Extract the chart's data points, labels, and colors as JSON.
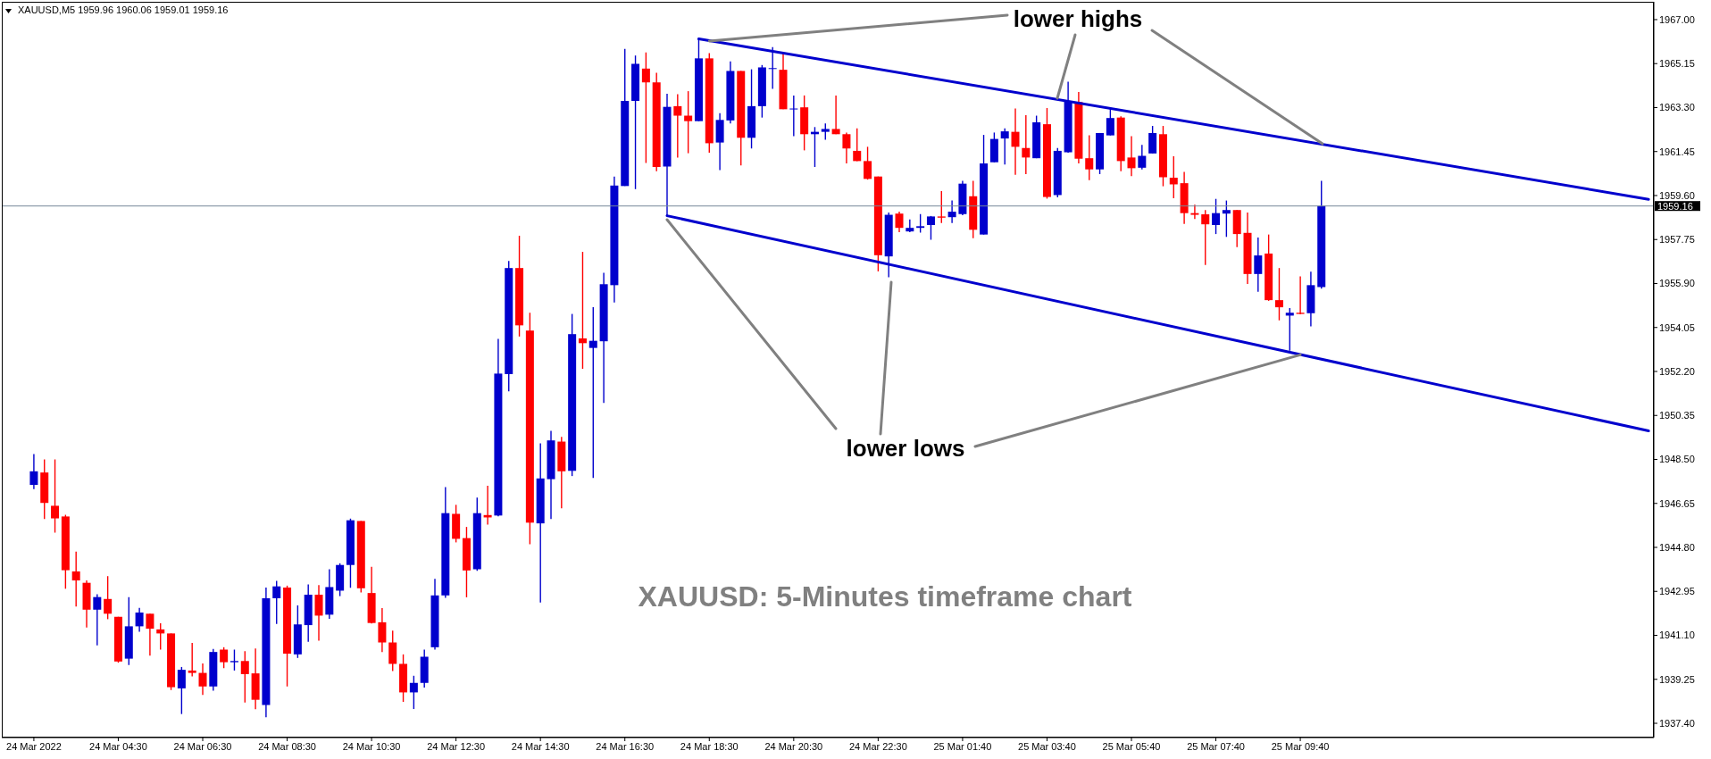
{
  "chart_data": {
    "type": "candlestick",
    "title": "XAUUSD,M5 1959.96 1960.06 1959.01 1959.16",
    "categories": [
      "24 Mar 2022",
      null,
      null,
      null,
      null,
      null,
      null,
      null,
      "24 Mar 04:30",
      null,
      null,
      null,
      null,
      null,
      null,
      null,
      "24 Mar 06:30",
      null,
      null,
      null,
      null,
      null,
      null,
      null,
      "24 Mar 08:30",
      null,
      null,
      null,
      null,
      null,
      null,
      null,
      "24 Mar 10:30",
      null,
      null,
      null,
      null,
      null,
      null,
      null,
      "24 Mar 12:30",
      null,
      null,
      null,
      null,
      null,
      null,
      null,
      "24 Mar 14:30",
      null,
      null,
      null,
      null,
      null,
      null,
      null,
      "24 Mar 16:30",
      null,
      null,
      null,
      null,
      null,
      null,
      null,
      "24 Mar 18:30",
      null,
      null,
      null,
      null,
      null,
      null,
      null,
      "24 Mar 20:30",
      null,
      null,
      null,
      null,
      null,
      null,
      null,
      "24 Mar 22:30",
      null,
      null,
      null,
      null,
      null,
      null,
      null,
      "25 Mar 01:40",
      null,
      null,
      null,
      null,
      null,
      null,
      null,
      "25 Mar 03:40",
      null,
      null,
      null,
      null,
      null,
      null,
      null,
      "25 Mar 05:40",
      null,
      null,
      null,
      null,
      null,
      null,
      null,
      "25 Mar 07:40",
      null,
      null,
      null,
      null,
      null,
      null,
      null,
      "25 Mar 09:40",
      null,
      null,
      null,
      null,
      null,
      null,
      null,
      null,
      null,
      null,
      null,
      null,
      null,
      null,
      null,
      null,
      null,
      null,
      null,
      null,
      null,
      null,
      null,
      null,
      null,
      null,
      null,
      null,
      null,
      null,
      null,
      null,
      null
    ],
    "ohlc": [
      [
        1947.43,
        1948.73,
        1947.25,
        1948.0
      ],
      [
        1947.95,
        1948.5,
        1945.99,
        1946.67
      ],
      [
        1946.55,
        1948.5,
        1945.42,
        1946.02
      ],
      [
        1946.1,
        1946.17,
        1943.06,
        1943.84
      ],
      [
        1943.79,
        1944.62,
        1942.31,
        1943.41
      ],
      [
        1943.31,
        1943.41,
        1941.43,
        1942.18
      ],
      [
        1942.18,
        1942.83,
        1940.68,
        1942.71
      ],
      [
        1942.63,
        1943.59,
        1941.78,
        1942.01
      ],
      [
        1941.88,
        1941.88,
        1939.95,
        1940.0
      ],
      [
        1940.12,
        1942.71,
        1939.85,
        1941.48
      ],
      [
        1941.48,
        1942.26,
        1941.25,
        1942.06
      ],
      [
        1942.01,
        1942.01,
        1940.25,
        1941.38
      ],
      [
        1941.35,
        1941.61,
        1940.5,
        1941.18
      ],
      [
        1941.18,
        1941.18,
        1938.8,
        1938.92
      ],
      [
        1938.87,
        1939.77,
        1937.79,
        1939.65
      ],
      [
        1939.62,
        1940.78,
        1939.37,
        1939.52
      ],
      [
        1939.52,
        1939.92,
        1938.59,
        1938.95
      ],
      [
        1938.95,
        1940.53,
        1938.77,
        1940.4
      ],
      [
        1940.5,
        1940.6,
        1939.72,
        1939.97
      ],
      [
        1939.97,
        1940.5,
        1939.62,
        1940.02
      ],
      [
        1940.02,
        1940.43,
        1938.27,
        1939.47
      ],
      [
        1939.5,
        1940.55,
        1937.99,
        1938.39
      ],
      [
        1938.17,
        1943.11,
        1937.65,
        1942.66
      ],
      [
        1942.66,
        1943.39,
        1941.58,
        1943.16
      ],
      [
        1943.11,
        1943.19,
        1938.95,
        1940.33
      ],
      [
        1940.3,
        1942.36,
        1940.15,
        1941.56
      ],
      [
        1941.53,
        1943.24,
        1940.83,
        1942.81
      ],
      [
        1942.81,
        1943.21,
        1940.88,
        1941.93
      ],
      [
        1941.97,
        1943.88,
        1941.8,
        1943.13
      ],
      [
        1942.98,
        1944.13,
        1942.75,
        1944.06
      ],
      [
        1944.06,
        1946.01,
        1943.1,
        1945.94
      ],
      [
        1945.91,
        1945.91,
        1942.9,
        1943.08
      ],
      [
        1942.88,
        1943.98,
        1941.6,
        1941.62
      ],
      [
        1941.65,
        1942.25,
        1940.4,
        1940.8
      ],
      [
        1940.8,
        1941.3,
        1939.6,
        1939.9
      ],
      [
        1939.9,
        1940.3,
        1938.3,
        1938.7
      ],
      [
        1938.7,
        1939.4,
        1938.0,
        1939.1
      ],
      [
        1939.1,
        1940.5,
        1938.9,
        1940.2
      ],
      [
        1940.6,
        1943.48,
        1940.5,
        1942.78
      ],
      [
        1942.78,
        1947.34,
        1942.68,
        1946.24
      ],
      [
        1946.21,
        1946.59,
        1945.01,
        1945.16
      ],
      [
        1945.19,
        1945.66,
        1942.7,
        1943.83
      ],
      [
        1943.88,
        1946.89,
        1943.81,
        1946.24
      ],
      [
        1946.16,
        1947.39,
        1945.76,
        1946.06
      ],
      [
        1946.14,
        1953.57,
        1946.11,
        1952.11
      ],
      [
        1952.09,
        1956.85,
        1951.36,
        1956.55
      ],
      [
        1956.55,
        1957.91,
        1953.67,
        1954.14
      ],
      [
        1953.92,
        1954.67,
        1944.93,
        1945.84
      ],
      [
        1945.81,
        1949.18,
        1942.48,
        1947.7
      ],
      [
        1947.67,
        1949.7,
        1945.99,
        1949.3
      ],
      [
        1949.25,
        1949.45,
        1946.44,
        1948.0
      ],
      [
        1948.02,
        1954.62,
        1947.8,
        1953.77
      ],
      [
        1953.59,
        1957.23,
        1952.31,
        1953.39
      ],
      [
        1953.19,
        1954.9,
        1947.72,
        1953.49
      ],
      [
        1953.47,
        1956.35,
        1950.88,
        1955.87
      ],
      [
        1955.83,
        1960.4,
        1955.1,
        1960.02
      ],
      [
        1960.0,
        1965.77,
        1960.0,
        1963.58
      ],
      [
        1963.58,
        1965.49,
        1959.87,
        1965.14
      ],
      [
        1964.94,
        1965.62,
        1960.97,
        1964.36
      ],
      [
        1964.36,
        1964.76,
        1960.62,
        1960.8
      ],
      [
        1960.82,
        1963.88,
        1958.75,
        1963.33
      ],
      [
        1963.36,
        1963.86,
        1961.2,
        1962.96
      ],
      [
        1962.96,
        1963.99,
        1961.38,
        1962.73
      ],
      [
        1962.73,
        1966.19,
        1962.73,
        1965.37
      ],
      [
        1965.37,
        1965.59,
        1961.4,
        1961.8
      ],
      [
        1961.83,
        1963.06,
        1960.67,
        1962.78
      ],
      [
        1962.76,
        1965.24,
        1962.63,
        1964.84
      ],
      [
        1964.84,
        1964.84,
        1960.87,
        1962.03
      ],
      [
        1962.03,
        1964.91,
        1961.58,
        1963.36
      ],
      [
        1963.36,
        1965.09,
        1962.88,
        1964.99
      ],
      [
        1964.96,
        1965.84,
        1964.09,
        1964.96
      ],
      [
        1964.89,
        1965.62,
        1963.23,
        1963.23
      ],
      [
        1963.23,
        1963.81,
        1962.1,
        1963.26
      ],
      [
        1963.31,
        1963.81,
        1961.5,
        1962.18
      ],
      [
        1962.18,
        1962.48,
        1960.8,
        1962.28
      ],
      [
        1962.28,
        1962.63,
        1961.95,
        1962.4
      ],
      [
        1962.4,
        1963.81,
        1962.18,
        1962.18
      ],
      [
        1962.18,
        1962.25,
        1960.95,
        1961.58
      ],
      [
        1961.48,
        1962.43,
        1961.05,
        1961.05
      ],
      [
        1961.05,
        1961.65,
        1960.27,
        1960.3
      ],
      [
        1960.4,
        1960.4,
        1956.41,
        1957.09
      ],
      [
        1957.04,
        1958.89,
        1956.16,
        1958.79
      ],
      [
        1958.84,
        1958.92,
        1958.06,
        1958.24
      ],
      [
        1958.09,
        1958.59,
        1958.06,
        1958.24
      ],
      [
        1958.24,
        1958.82,
        1958.04,
        1958.31
      ],
      [
        1958.36,
        1958.74,
        1957.74,
        1958.72
      ],
      [
        1958.72,
        1959.79,
        1958.44,
        1958.67
      ],
      [
        1958.69,
        1959.39,
        1958.44,
        1958.92
      ],
      [
        1958.82,
        1960.22,
        1958.77,
        1960.1
      ],
      [
        1959.57,
        1960.22,
        1957.81,
        1958.16
      ],
      [
        1957.96,
        1962.15,
        1957.96,
        1960.95
      ],
      [
        1961.0,
        1962.25,
        1961.0,
        1961.98
      ],
      [
        1962.0,
        1962.43,
        1960.9,
        1962.3
      ],
      [
        1962.28,
        1963.26,
        1960.47,
        1961.65
      ],
      [
        1961.6,
        1962.98,
        1960.5,
        1961.2
      ],
      [
        1961.17,
        1962.96,
        1961.17,
        1962.68
      ],
      [
        1962.6,
        1963.28,
        1959.47,
        1959.54
      ],
      [
        1959.62,
        1961.6,
        1959.52,
        1961.48
      ],
      [
        1961.42,
        1964.39,
        1961.4,
        1963.58
      ],
      [
        1963.53,
        1963.96,
        1960.95,
        1961.15
      ],
      [
        1961.17,
        1962.13,
        1960.25,
        1960.7
      ],
      [
        1960.7,
        1962.23,
        1960.5,
        1962.23
      ],
      [
        1962.13,
        1963.28,
        1962.13,
        1962.86
      ],
      [
        1962.88,
        1962.93,
        1960.62,
        1961.05
      ],
      [
        1961.2,
        1962.1,
        1960.42,
        1960.75
      ],
      [
        1960.77,
        1961.73,
        1960.7,
        1961.27
      ],
      [
        1961.37,
        1962.53,
        1961.37,
        1962.23
      ],
      [
        1962.18,
        1962.53,
        1959.99,
        1960.37
      ],
      [
        1960.35,
        1961.25,
        1959.49,
        1960.07
      ],
      [
        1960.12,
        1960.59,
        1958.41,
        1958.86
      ],
      [
        1958.86,
        1959.21,
        1958.61,
        1958.79
      ],
      [
        1958.81,
        1958.99,
        1956.68,
        1958.39
      ],
      [
        1958.36,
        1959.46,
        1957.98,
        1958.86
      ],
      [
        1958.84,
        1959.39,
        1957.86,
        1958.99
      ],
      [
        1958.99,
        1958.99,
        1957.43,
        1957.98
      ],
      [
        1958.03,
        1958.89,
        1955.88,
        1956.3
      ],
      [
        1956.3,
        1957.83,
        1955.55,
        1957.08
      ],
      [
        1957.16,
        1957.96,
        1955.17,
        1955.2
      ],
      [
        1955.2,
        1956.55,
        1954.35,
        1954.9
      ],
      [
        1954.55,
        1954.87,
        1953.07,
        1954.67
      ],
      [
        1954.67,
        1956.2,
        1954.6,
        1954.62
      ],
      [
        1954.65,
        1956.4,
        1954.1,
        1955.83
      ],
      [
        1955.75,
        1960.22,
        1955.68,
        1959.16
      ],
      null,
      null,
      null,
      null,
      null,
      null,
      null,
      null,
      null,
      null,
      null,
      null,
      null,
      null,
      null,
      null,
      null,
      null,
      null,
      null,
      null,
      null,
      null,
      null,
      null,
      null,
      null,
      null,
      null,
      null,
      null
    ],
    "colors": [
      "#0000cd",
      "#ff0000",
      "#ff0000",
      "#ff0000",
      "#ff0000",
      "#ff0000",
      "#0000cd",
      "#ff0000",
      "#ff0000",
      "#0000cd",
      "#0000cd",
      "#ff0000",
      "#ff0000",
      "#ff0000",
      "#0000cd",
      "#ff0000",
      "#ff0000",
      "#0000cd",
      "#ff0000",
      "#0000cd",
      "#ff0000",
      "#ff0000",
      "#0000cd",
      "#0000cd",
      "#ff0000",
      "#0000cd",
      "#0000cd",
      "#ff0000",
      "#0000cd",
      "#0000cd",
      "#0000cd",
      "#ff0000",
      "#ff0000",
      "#ff0000",
      "#ff0000",
      "#ff0000",
      "#0000cd",
      "#0000cd",
      "#0000cd",
      "#0000cd",
      "#ff0000",
      "#ff0000",
      "#0000cd",
      "#ff0000",
      "#0000cd",
      "#0000cd",
      "#ff0000",
      "#ff0000",
      "#0000cd",
      "#0000cd",
      "#ff0000",
      "#0000cd",
      "#ff0000",
      "#0000cd",
      "#0000cd",
      "#0000cd",
      "#0000cd",
      "#0000cd",
      "#ff0000",
      "#ff0000",
      "#0000cd",
      "#ff0000",
      "#ff0000",
      "#0000cd",
      "#ff0000",
      "#0000cd",
      "#0000cd",
      "#ff0000",
      "#0000cd",
      "#0000cd",
      "#0000cd",
      "#ff0000",
      "#0000cd",
      "#ff0000",
      "#0000cd",
      "#0000cd",
      "#ff0000",
      "#ff0000",
      "#ff0000",
      "#ff0000",
      "#ff0000",
      "#0000cd",
      "#ff0000",
      "#0000cd",
      "#0000cd",
      "#0000cd",
      "#ff0000",
      "#0000cd",
      "#0000cd",
      "#ff0000",
      "#0000cd",
      "#0000cd",
      "#0000cd",
      "#ff0000",
      "#ff0000",
      "#0000cd",
      "#ff0000",
      "#0000cd",
      "#0000cd",
      "#ff0000",
      "#ff0000",
      "#0000cd",
      "#0000cd",
      "#ff0000",
      "#ff0000",
      "#0000cd",
      "#0000cd",
      "#ff0000",
      "#ff0000",
      "#ff0000",
      "#ff0000",
      "#ff0000",
      "#0000cd",
      "#0000cd",
      "#ff0000",
      "#ff0000",
      "#0000cd",
      "#ff0000",
      "#ff0000",
      "#0000cd",
      "#ff0000",
      "#0000cd",
      "#0000cd",
      null,
      null,
      null,
      null,
      null,
      null,
      null,
      null,
      null,
      null,
      null,
      null,
      null,
      null,
      null,
      null,
      null,
      null,
      null,
      null,
      null,
      null,
      null,
      null,
      null,
      null,
      null,
      null,
      null,
      null,
      null
    ],
    "series": [
      {
        "type": "line",
        "color": "#0000cd",
        "values": [
          null,
          null,
          null,
          null,
          null,
          null,
          null,
          null,
          null,
          null,
          null,
          null,
          null,
          null,
          null,
          null,
          null,
          null,
          null,
          null,
          null,
          null,
          null,
          null,
          null,
          null,
          null,
          null,
          null,
          null,
          null,
          null,
          null,
          null,
          null,
          null,
          null,
          null,
          null,
          null,
          null,
          null,
          null,
          null,
          null,
          null,
          null,
          null,
          null,
          null,
          null,
          null,
          null,
          null,
          null,
          null,
          null,
          null,
          null,
          null,
          null,
          null,
          null,
          1966.19,
          null,
          null,
          null,
          null,
          null,
          null,
          null,
          null,
          null,
          null,
          null,
          null,
          null,
          null,
          null,
          null,
          null,
          null,
          null,
          null,
          null,
          null,
          null,
          null,
          null,
          null,
          null,
          null,
          null,
          null,
          null,
          null,
          null,
          null,
          null,
          null,
          null,
          null,
          null,
          null,
          null,
          null,
          null,
          null,
          null,
          null,
          null,
          null,
          null,
          null,
          null,
          null,
          null,
          null,
          null,
          null,
          null,
          null,
          null,
          null,
          null,
          null,
          null,
          null,
          null,
          null,
          null,
          null,
          null,
          null,
          null,
          null,
          null,
          null,
          null,
          null,
          null,
          null,
          null,
          null,
          null,
          null,
          null,
          null,
          null,
          null,
          null,
          null,
          null,
          1959.44
        ]
      },
      {
        "type": "line",
        "color": "#0000cd",
        "values": [
          null,
          null,
          null,
          null,
          null,
          null,
          null,
          null,
          null,
          null,
          null,
          null,
          null,
          null,
          null,
          null,
          null,
          null,
          null,
          null,
          null,
          null,
          null,
          null,
          null,
          null,
          null,
          null,
          null,
          null,
          null,
          null,
          null,
          null,
          null,
          null,
          null,
          null,
          null,
          null,
          null,
          null,
          null,
          null,
          null,
          null,
          null,
          null,
          null,
          null,
          null,
          null,
          null,
          null,
          null,
          null,
          null,
          null,
          null,
          null,
          1958.75,
          null,
          null,
          null,
          null,
          null,
          null,
          null,
          null,
          null,
          null,
          null,
          null,
          null,
          null,
          null,
          null,
          null,
          null,
          null,
          null,
          null,
          null,
          null,
          null,
          null,
          null,
          null,
          null,
          null,
          null,
          null,
          null,
          null,
          null,
          null,
          null,
          null,
          null,
          null,
          null,
          null,
          null,
          null,
          null,
          null,
          null,
          null,
          null,
          null,
          null,
          null,
          null,
          null,
          null,
          null,
          null,
          null,
          null,
          null,
          null,
          null,
          null,
          null,
          null,
          null,
          null,
          null,
          null,
          null,
          null,
          null,
          null,
          null,
          null,
          null,
          null,
          null,
          null,
          null,
          null,
          null,
          null,
          null,
          null,
          null,
          null,
          null,
          null,
          null,
          null,
          null,
          null,
          1949.7
        ]
      }
    ],
    "ylim": [
      1936.8,
      1967.75
    ],
    "yticks": [
      {
        "value": 1967,
        "label": "1967.00"
      },
      1965.15,
      {
        "value": 1963.3,
        "label": "1963.30"
      },
      1961.45,
      {
        "value": 1959.6,
        "label": "1959.60"
      },
      1957.75,
      {
        "value": 1955.9,
        "label": "1955.90"
      },
      1954.05,
      {
        "value": 1952.2,
        "label": "1952.20"
      },
      1950.35,
      {
        "value": 1948.5,
        "label": "1948.50"
      },
      1946.65,
      {
        "value": 1944.8,
        "label": "1944.80"
      },
      1942.95,
      {
        "value": 1941.1,
        "label": "1941.10"
      },
      1939.25,
      {
        "value": 1937.4,
        "label": "1937.40"
      }
    ],
    "ref_lines": [
      {
        "axis": "y",
        "value": 1959.16,
        "label": "1959.16",
        "color": "#778899"
      }
    ],
    "annotations": [
      {
        "text": "lower highs",
        "x": "24 Mar 18:30",
        "y": 1966.1
      },
      {
        "text": "lower lows",
        "x": "25 Mar 09:40",
        "y": 1952.9
      },
      "XAUUSD: 5-Minutes timeframe chart"
    ]
  }
}
